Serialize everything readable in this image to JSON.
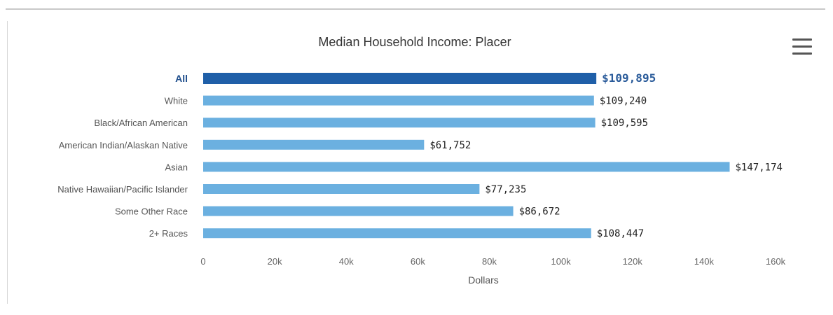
{
  "colors": {
    "highlight_bar": "#1f5fa8",
    "bar": "#6bb0e0"
  },
  "menu": {
    "icon": "hamburger-menu-icon"
  },
  "chart_data": {
    "type": "bar",
    "orientation": "horizontal",
    "title": "Median Household Income: Placer",
    "xlabel": "Dollars",
    "ylabel": "",
    "xlim": [
      0,
      160000
    ],
    "x_ticks": [
      0,
      20000,
      40000,
      60000,
      80000,
      100000,
      120000,
      140000,
      160000
    ],
    "x_tick_labels": [
      "0",
      "20k",
      "40k",
      "60k",
      "80k",
      "100k",
      "120k",
      "140k",
      "160k"
    ],
    "grid": false,
    "legend": "none",
    "categories": [
      "All",
      "White",
      "Black/African American",
      "American Indian/Alaskan Native",
      "Asian",
      "Native Hawaiian/Pacific Islander",
      "Some Other Race",
      "2+ Races"
    ],
    "values": [
      109895,
      109240,
      109595,
      61752,
      147174,
      77235,
      86672,
      108447
    ],
    "data_labels": [
      "$109,895",
      "$109,240",
      "$109,595",
      "$61,752",
      "$147,174",
      "$77,235",
      "$86,672",
      "$108,447"
    ],
    "highlight_index": 0
  }
}
